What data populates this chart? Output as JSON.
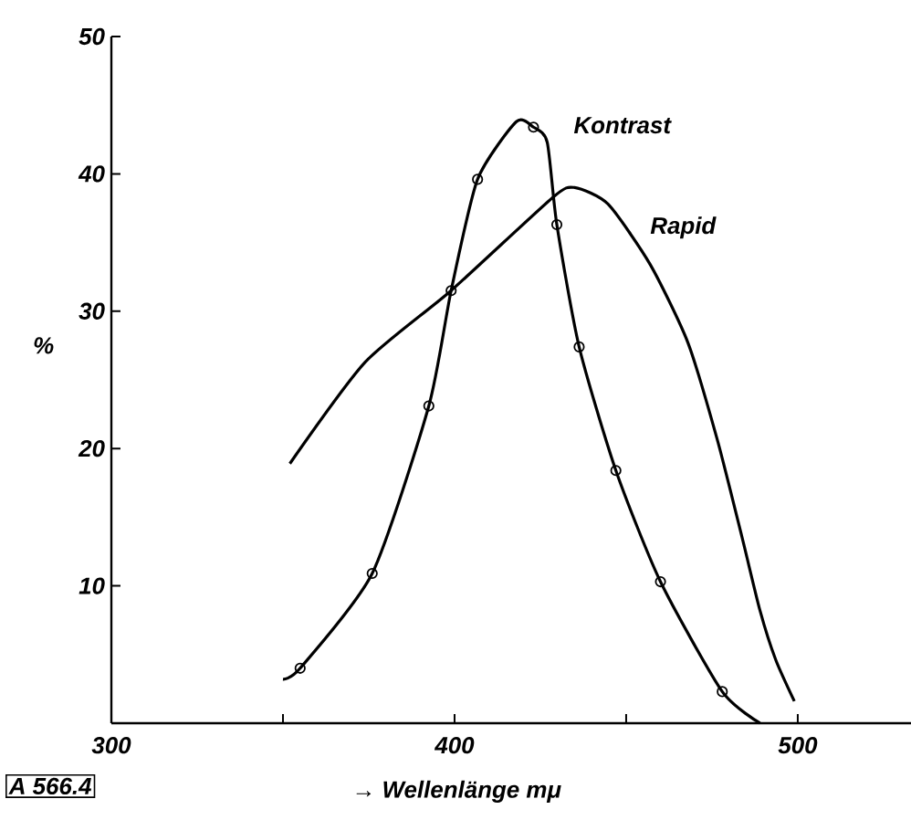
{
  "chart_data": {
    "type": "line",
    "xlabel": "→ Wellenlänge mμ",
    "ylabel": "%",
    "xlim": [
      300,
      533
    ],
    "ylim": [
      0,
      50
    ],
    "xticks": [
      300,
      {
        "value": 350,
        "label": null
      },
      400,
      {
        "value": 450,
        "label": null
      },
      500
    ],
    "yticks": [
      10,
      20,
      30,
      40,
      50
    ],
    "line_style": "solid",
    "annotations": [
      "A 566.4"
    ],
    "series": [
      {
        "name": "Kontrast",
        "marker": "none",
        "color": "#000000",
        "x": [
          350,
          355,
          376,
          392.5,
          399,
          406.7,
          418,
          423,
          427,
          429.8,
          436.3,
          447,
          460,
          478,
          489
        ],
        "values": [
          3.2,
          4.0,
          10.9,
          23.1,
          31.5,
          39.6,
          43.8,
          43.4,
          42.3,
          36.3,
          27.4,
          18.4,
          10.3,
          2.3,
          0
        ]
      },
      {
        "type": "scatter",
        "marker": "circle",
        "color": "#000000",
        "x": [
          355,
          376,
          392.5,
          399,
          406.7,
          423,
          429.8,
          436.3,
          447,
          460,
          478
        ],
        "values": [
          4.0,
          10.9,
          23.1,
          31.5,
          39.6,
          43.4,
          36.3,
          27.4,
          18.4,
          10.3,
          2.3
        ]
      },
      {
        "name": "Rapid",
        "marker": "none",
        "color": "#000000",
        "x": [
          352,
          374,
          399,
          428.7,
          435,
          444.7,
          457,
          468,
          476.6,
          483.8,
          489,
          493.6,
          499
        ],
        "values": [
          18.9,
          26.3,
          31.5,
          38.3,
          39.0,
          37.8,
          33.4,
          27.7,
          20.6,
          13.5,
          8.2,
          4.6,
          1.6
        ]
      }
    ]
  }
}
